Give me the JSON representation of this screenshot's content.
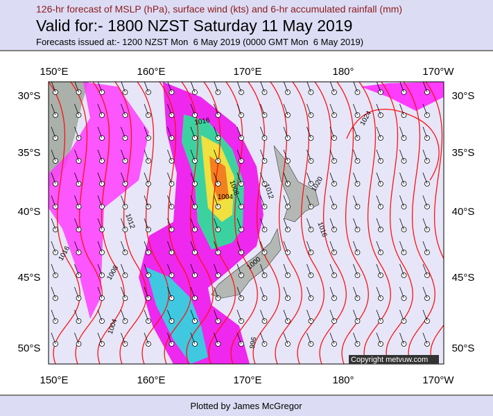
{
  "header": {
    "subtitle": "126-hr forecast of MSLP (hPa), surface wind (kts) and 6-hr accumulated rainfall (mm)",
    "title": "Valid for:- 1800 NZST Saturday 11 May 2019",
    "issued": "Forecasts issued at:- 1200 NZST Mon  6 May 2019 (0000 GMT Mon  6 May 2019)"
  },
  "map": {
    "lon_labels_top": [
      "150°E",
      "160°E",
      "170°E",
      "180°",
      "170°W"
    ],
    "lon_labels_bottom": [
      "150°E",
      "160°E",
      "170°E",
      "180°",
      "170°W"
    ],
    "lat_labels_left": [
      "30°S",
      "35°S",
      "40°S",
      "45°S",
      "50°S"
    ],
    "lat_labels_right": [
      "30°S",
      "35°S",
      "40°S",
      "45°S",
      "50°S"
    ],
    "contour_labels": [
      "1016",
      "1024",
      "1020",
      "1008",
      "1012",
      "1004",
      "1012",
      "1016",
      "1008",
      "1000",
      "1016",
      "1004",
      "996"
    ],
    "copyright": "Copyright metvuw.com"
  },
  "footer": {
    "credit": "Plotted by James McGregor"
  }
}
